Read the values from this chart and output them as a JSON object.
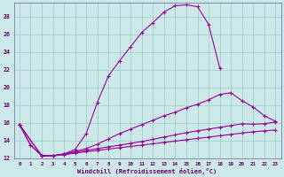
{
  "xlabel": "Windchill (Refroidissement éolien,°C)",
  "background_color": "#cce8e8",
  "grid_color": "#99cccc",
  "line_color": "#990099",
  "xlim": [
    -0.5,
    23.5
  ],
  "ylim": [
    12,
    29.5
  ],
  "yticks": [
    12,
    14,
    16,
    18,
    20,
    22,
    24,
    26,
    28
  ],
  "xticks": [
    0,
    1,
    2,
    3,
    4,
    5,
    6,
    7,
    8,
    9,
    10,
    11,
    12,
    13,
    14,
    15,
    16,
    17,
    18,
    19,
    20,
    21,
    22,
    23
  ],
  "curve1_x": [
    0,
    1,
    2,
    3,
    4,
    5,
    6,
    7,
    8,
    9,
    10,
    11,
    12,
    13,
    14,
    15,
    16,
    17,
    18
  ],
  "curve1_y": [
    15.8,
    13.5,
    12.3,
    12.3,
    12.5,
    13.0,
    14.8,
    18.3,
    21.3,
    23.0,
    24.6,
    26.2,
    27.3,
    28.5,
    29.2,
    29.3,
    29.1,
    27.1,
    22.2
  ],
  "curve2_x": [
    0,
    1,
    2,
    3,
    4,
    5,
    6,
    7,
    8,
    9,
    10,
    11,
    12,
    13,
    14,
    15,
    16,
    17,
    18,
    19,
    20,
    21,
    22,
    23
  ],
  "curve2_y": [
    15.8,
    13.5,
    12.3,
    12.3,
    12.5,
    12.8,
    13.1,
    13.6,
    14.2,
    14.8,
    15.3,
    15.8,
    16.3,
    16.8,
    17.2,
    17.7,
    18.1,
    18.6,
    19.2,
    19.4,
    18.5,
    17.8,
    16.8,
    16.2
  ],
  "curve3_x": [
    0,
    2,
    3,
    4,
    5,
    6,
    7,
    8,
    9,
    10,
    11,
    12,
    13,
    14,
    15,
    16,
    17,
    18,
    19,
    20,
    21,
    22,
    23
  ],
  "curve3_y": [
    15.8,
    12.3,
    12.3,
    12.5,
    12.7,
    12.9,
    13.1,
    13.3,
    13.5,
    13.7,
    13.9,
    14.15,
    14.4,
    14.65,
    14.9,
    15.1,
    15.3,
    15.5,
    15.7,
    15.9,
    15.85,
    15.9,
    16.1
  ],
  "curve4_x": [
    0,
    2,
    3,
    4,
    5,
    6,
    7,
    8,
    9,
    10,
    11,
    12,
    13,
    14,
    15,
    16,
    17,
    18,
    19,
    20,
    21,
    22,
    23
  ],
  "curve4_y": [
    15.8,
    12.3,
    12.3,
    12.4,
    12.6,
    12.75,
    12.9,
    13.05,
    13.2,
    13.35,
    13.5,
    13.65,
    13.8,
    13.95,
    14.1,
    14.25,
    14.4,
    14.55,
    14.7,
    14.85,
    15.0,
    15.1,
    15.2
  ]
}
